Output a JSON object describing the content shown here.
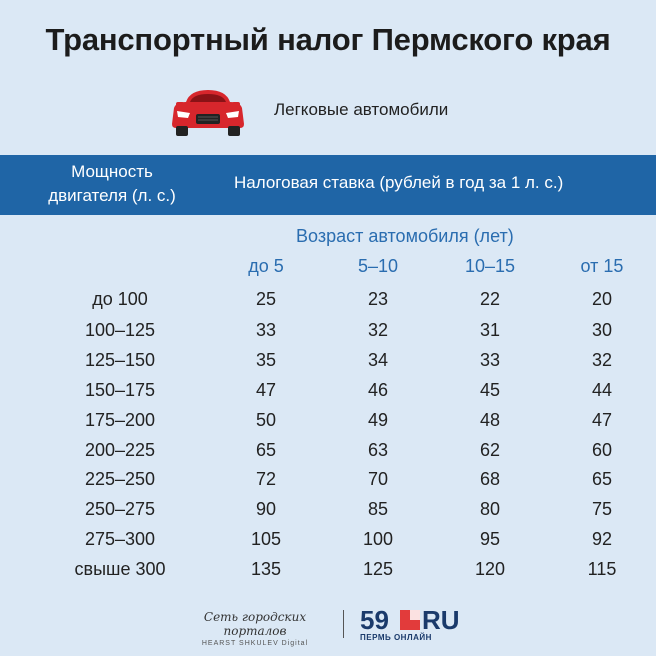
{
  "title": "Транспортный налог Пермского края",
  "subtitle": "Легковые автомобили",
  "header": {
    "power_line1": "Мощность",
    "power_line2": "двигателя (л. с.)",
    "rate": "Налоговая ставка (рублей в год за 1 л. с.)"
  },
  "age_label": "Возраст автомобиля (лет)",
  "columns": [
    "до 5",
    "5–10",
    "10–15",
    "от 15"
  ],
  "rows": [
    {
      "power": "до 100",
      "values": [
        "25",
        "23",
        "22",
        "20"
      ]
    },
    {
      "power": "100–125",
      "values": [
        "33",
        "32",
        "31",
        "30"
      ]
    },
    {
      "power": "125–150",
      "values": [
        "35",
        "34",
        "33",
        "32"
      ]
    },
    {
      "power": "150–175",
      "values": [
        "47",
        "46",
        "45",
        "44"
      ]
    },
    {
      "power": "175–200",
      "values": [
        "50",
        "49",
        "48",
        "47"
      ]
    },
    {
      "power": "200–225",
      "values": [
        "65",
        "63",
        "62",
        "60"
      ]
    },
    {
      "power": "225–250",
      "values": [
        "72",
        "70",
        "68",
        "65"
      ]
    },
    {
      "power": "250–275",
      "values": [
        "90",
        "85",
        "80",
        "75"
      ]
    },
    {
      "power": "275–300",
      "values": [
        "105",
        "100",
        "95",
        "92"
      ]
    },
    {
      "power": "свыше 300",
      "values": [
        "135",
        "125",
        "120",
        "115"
      ]
    }
  ],
  "footer": {
    "brand_line1": "Сеть городских порталов",
    "brand_line2": "HEARST SHKULEV Digital",
    "logo_number": "59",
    "logo_domain": "RU",
    "logo_sub": "ПЕРМЬ ОНЛАЙН"
  },
  "colors": {
    "background": "#dbe8f5",
    "header_bar": "#1f65a6",
    "accent_text": "#2a6db0",
    "car": "#d7262c",
    "logo_square": "#e23b3b"
  },
  "icons": {
    "car": "car-icon",
    "logo_square": "logo-square-icon"
  }
}
